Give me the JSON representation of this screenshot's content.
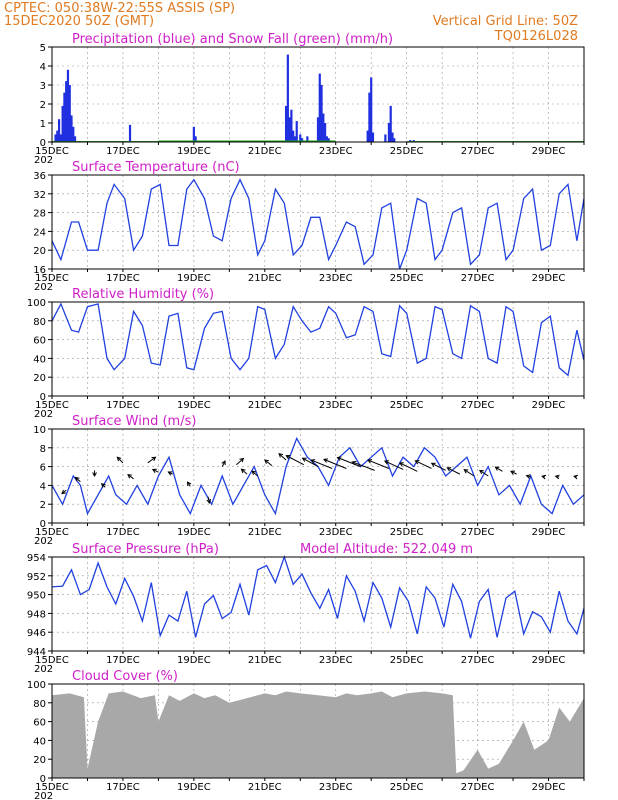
{
  "header": {
    "station": "CPTEC:   050:38W-22:55S   ASSIS (SP)",
    "date": "15DEC2020 50Z (GMT)",
    "grid_note": "Vertical Grid Line: 50Z",
    "code": "TQ0126L028"
  },
  "x_ticks": [
    "15DEC",
    "17DEC",
    "19DEC",
    "21DEC",
    "23DEC",
    "25DEC",
    "27DEC",
    "29DEC"
  ],
  "year_label": "202",
  "colors": {
    "header": "#e07b22",
    "title": "#d020c8",
    "precip": "#2030e0",
    "snow": "#20a020",
    "line": "#2040e0",
    "cloud": "#a8a8a8",
    "wind_arrow": "#000000",
    "grid": "#999999"
  },
  "chart_data": [
    {
      "id": "precip",
      "type": "bar",
      "title": "Precipitation (blue) and Snow Fall (green) (mm/h)",
      "ylim": [
        0,
        5
      ],
      "yticks": [
        "0",
        "1",
        "2",
        "3",
        "4",
        "5"
      ],
      "x_days": [
        0.1,
        0.15,
        0.2,
        0.25,
        0.3,
        0.35,
        0.4,
        0.45,
        0.5,
        0.55,
        0.6,
        0.65,
        2.2,
        4.0,
        4.05,
        6.6,
        6.65,
        6.7,
        6.75,
        6.8,
        6.85,
        6.9,
        7.0,
        7.05,
        7.2,
        7.5,
        7.55,
        7.6,
        7.65,
        7.7,
        7.75,
        7.8,
        8.9,
        8.95,
        9.0,
        9.05,
        9.4,
        9.5,
        9.55,
        9.6,
        9.65,
        10.1,
        10.2
      ],
      "values": [
        0.4,
        0.6,
        1.2,
        0.4,
        1.9,
        2.6,
        3.2,
        3.8,
        3.0,
        1.4,
        0.8,
        0.3,
        0.9,
        0.8,
        0.3,
        1.9,
        4.6,
        1.3,
        1.7,
        0.6,
        0.3,
        1.1,
        0.4,
        0.2,
        0.3,
        1.3,
        3.6,
        3.0,
        1.5,
        1.0,
        0.3,
        0.2,
        0.6,
        2.6,
        3.4,
        0.5,
        0.4,
        1.0,
        1.9,
        0.5,
        0.2,
        0.1,
        0.1
      ],
      "snow": [
        [
          0.0,
          3.0,
          0.05
        ],
        [
          3.0,
          8.0,
          0.08
        ],
        [
          10.0,
          15.0,
          0.05
        ]
      ]
    },
    {
      "id": "temperature",
      "type": "line",
      "title": "Surface Temperature (nC)",
      "ylim": [
        16,
        36
      ],
      "yticks": [
        "16",
        "20",
        "24",
        "28",
        "32",
        "36"
      ],
      "x_days": [
        0,
        0.25,
        0.55,
        0.75,
        1.0,
        1.3,
        1.55,
        1.75,
        2.05,
        2.3,
        2.55,
        2.8,
        3.05,
        3.3,
        3.55,
        3.8,
        4.0,
        4.3,
        4.55,
        4.8,
        5.05,
        5.3,
        5.55,
        5.8,
        6.0,
        6.3,
        6.55,
        6.8,
        7.05,
        7.3,
        7.55,
        7.8,
        8.0,
        8.3,
        8.55,
        8.8,
        9.05,
        9.3,
        9.55,
        9.8,
        10.0,
        10.3,
        10.55,
        10.8,
        11.0,
        11.3,
        11.55,
        11.8,
        12.05,
        12.3,
        12.55,
        12.8,
        13.0,
        13.3,
        13.55,
        13.8,
        14.05,
        14.3,
        14.55,
        14.8,
        15.0
      ],
      "values": [
        22,
        18,
        26,
        26,
        20,
        20,
        30,
        34,
        31,
        20,
        23,
        33,
        34,
        21,
        21,
        33,
        35,
        31,
        23,
        22,
        31,
        35,
        31,
        19,
        22,
        33,
        30,
        19,
        21,
        27,
        27,
        18,
        21,
        26,
        25,
        17,
        19,
        29,
        30,
        16,
        20,
        31,
        30,
        18,
        20,
        28,
        29,
        17,
        19,
        29,
        30,
        18,
        20,
        31,
        33,
        20,
        21,
        32,
        34,
        22,
        31
      ]
    },
    {
      "id": "humidity",
      "type": "line",
      "title": "Relative Humidity (%)",
      "ylim": [
        0,
        100
      ],
      "yticks": [
        "0",
        "20",
        "40",
        "60",
        "80",
        "100"
      ],
      "x_days": [
        0,
        0.25,
        0.55,
        0.75,
        1.0,
        1.3,
        1.55,
        1.75,
        2.05,
        2.3,
        2.55,
        2.8,
        3.05,
        3.3,
        3.55,
        3.8,
        4.0,
        4.3,
        4.55,
        4.8,
        5.05,
        5.3,
        5.55,
        5.8,
        6.0,
        6.3,
        6.55,
        6.8,
        7.05,
        7.3,
        7.55,
        7.8,
        8.0,
        8.3,
        8.55,
        8.8,
        9.05,
        9.3,
        9.55,
        9.8,
        10.0,
        10.3,
        10.55,
        10.8,
        11.0,
        11.3,
        11.55,
        11.8,
        12.05,
        12.3,
        12.55,
        12.8,
        13.0,
        13.3,
        13.55,
        13.8,
        14.05,
        14.3,
        14.55,
        14.8,
        15.0
      ],
      "values": [
        80,
        98,
        70,
        68,
        95,
        98,
        40,
        28,
        40,
        90,
        75,
        35,
        33,
        85,
        88,
        30,
        28,
        72,
        88,
        90,
        40,
        28,
        40,
        95,
        92,
        40,
        55,
        95,
        80,
        68,
        72,
        95,
        88,
        62,
        65,
        95,
        90,
        45,
        42,
        96,
        88,
        35,
        40,
        95,
        92,
        45,
        40,
        96,
        90,
        40,
        35,
        95,
        90,
        32,
        25,
        78,
        85,
        30,
        22,
        70,
        38
      ]
    },
    {
      "id": "wind",
      "type": "line",
      "title": "Surface Wind (m/s)",
      "ylim": [
        0,
        10
      ],
      "yticks": [
        "0",
        "2",
        "4",
        "6",
        "8",
        "10"
      ],
      "x_days": [
        0,
        0.3,
        0.6,
        0.8,
        1.0,
        1.3,
        1.6,
        1.8,
        2.1,
        2.4,
        2.7,
        3.0,
        3.3,
        3.6,
        3.9,
        4.2,
        4.5,
        4.8,
        5.1,
        5.4,
        5.7,
        6.0,
        6.3,
        6.6,
        6.9,
        7.2,
        7.5,
        7.8,
        8.1,
        8.4,
        8.7,
        9.0,
        9.3,
        9.6,
        9.9,
        10.2,
        10.5,
        10.8,
        11.1,
        11.4,
        11.7,
        12.0,
        12.3,
        12.6,
        12.9,
        13.2,
        13.5,
        13.8,
        14.1,
        14.4,
        14.7,
        15.0
      ],
      "values": [
        4,
        2,
        5,
        4,
        1,
        3,
        5,
        3,
        2,
        4,
        2,
        5,
        7,
        3,
        1,
        4,
        2,
        5,
        2,
        4,
        6,
        3,
        1,
        6,
        9,
        7,
        6,
        4,
        7,
        8,
        6,
        7,
        8,
        5,
        7,
        6,
        8,
        7,
        5,
        6,
        7,
        4,
        6,
        3,
        4,
        2,
        5,
        2,
        1,
        4,
        2,
        3
      ]
    },
    {
      "id": "pressure",
      "type": "line",
      "title": "Surface Pressure (hPa)",
      "subtitle": "Model Altitude: 522.049 m",
      "ylim": [
        944,
        955
      ],
      "yticks": [
        "944",
        "946",
        "948",
        "950",
        "952",
        "954"
      ],
      "x_days": [
        0,
        0.3,
        0.55,
        0.8,
        1.05,
        1.3,
        1.55,
        1.8,
        2.05,
        2.3,
        2.55,
        2.8,
        3.05,
        3.3,
        3.55,
        3.8,
        4.05,
        4.3,
        4.55,
        4.8,
        5.05,
        5.3,
        5.55,
        5.8,
        6.05,
        6.3,
        6.55,
        6.8,
        7.05,
        7.3,
        7.55,
        7.8,
        8.05,
        8.3,
        8.55,
        8.8,
        9.05,
        9.3,
        9.55,
        9.8,
        10.05,
        10.3,
        10.55,
        10.8,
        11.05,
        11.3,
        11.55,
        11.8,
        12.05,
        12.3,
        12.55,
        12.8,
        13.05,
        13.3,
        13.55,
        13.8,
        14.05,
        14.3,
        14.55,
        14.8,
        15.0
      ],
      "values": [
        951.5,
        951.6,
        953.5,
        950.6,
        951.2,
        954.3,
        951.5,
        949.5,
        952.5,
        950.4,
        947.5,
        952.0,
        945.8,
        948.2,
        947.5,
        951.0,
        945.6,
        949.5,
        950.5,
        947.8,
        948.5,
        951.8,
        948.2,
        953.5,
        954.0,
        952.0,
        955.0,
        951.8,
        953.0,
        950.8,
        949.0,
        951.2,
        947.8,
        952.8,
        951.0,
        947.5,
        952.0,
        950.2,
        946.8,
        951.4,
        949.8,
        946.0,
        951.5,
        950.2,
        946.8,
        951.8,
        949.8,
        945.5,
        949.8,
        951.2,
        945.6,
        950.2,
        951.0,
        946.0,
        948.6,
        948.0,
        946.2,
        951.0,
        947.5,
        946.0,
        949.0
      ]
    },
    {
      "id": "cloud",
      "type": "area",
      "title": "Cloud Cover (%)",
      "ylim": [
        0,
        100
      ],
      "yticks": [
        "0",
        "20",
        "40",
        "60",
        "80",
        "100"
      ],
      "x_days": [
        0,
        0.5,
        0.9,
        1.0,
        1.3,
        1.6,
        2.0,
        2.5,
        2.9,
        3.0,
        3.3,
        3.6,
        4.0,
        4.3,
        4.6,
        5.0,
        5.5,
        6.0,
        6.3,
        6.6,
        7.0,
        7.5,
        8.0,
        8.3,
        8.6,
        9.0,
        9.3,
        9.6,
        10.0,
        10.5,
        11.0,
        11.3,
        11.4,
        11.6,
        12.0,
        12.3,
        12.6,
        13.0,
        13.3,
        13.6,
        14.0,
        14.3,
        14.6,
        15.0
      ],
      "values": [
        88,
        90,
        86,
        10,
        60,
        90,
        92,
        85,
        88,
        60,
        88,
        82,
        90,
        85,
        88,
        80,
        85,
        90,
        88,
        92,
        90,
        88,
        86,
        90,
        88,
        90,
        92,
        86,
        90,
        92,
        90,
        88,
        5,
        8,
        30,
        10,
        15,
        40,
        60,
        30,
        40,
        75,
        60,
        85
      ]
    }
  ],
  "wind_vectors": {
    "x_days": [
      0.4,
      0.8,
      1.2,
      1.5,
      2.0,
      2.3,
      2.7,
      3.0,
      3.4,
      3.9,
      4.4,
      4.8,
      5.2,
      5.5,
      5.8,
      6.2,
      6.6,
      7.1,
      7.5,
      7.9,
      8.3,
      8.7,
      9.1,
      9.5,
      9.9,
      10.3,
      10.7,
      11.1,
      11.5,
      11.9,
      12.3,
      12.7,
      13.1,
      13.5,
      13.9,
      14.3,
      14.8
    ],
    "y": [
      3.5,
      4.4,
      5.6,
      3.8,
      6.4,
      4.7,
      6.4,
      5.4,
      5.2,
      3.9,
      2.8,
      6.0,
      6.2,
      5.2,
      5.0,
      6.1,
      6.7,
      6.2,
      6.0,
      5.8,
      5.8,
      6.0,
      5.6,
      5.8,
      5.7,
      5.5,
      5.8,
      5.6,
      5.2,
      5.0,
      5.0,
      5.5,
      5.2,
      4.9,
      4.9,
      4.9,
      4.9
    ],
    "u": [
      -0.6,
      -0.7,
      0.0,
      -0.5,
      -0.8,
      -0.8,
      1.1,
      -0.8,
      -0.6,
      -0.4,
      0.2,
      0.4,
      1.0,
      -0.8,
      -0.8,
      -1.0,
      -1.0,
      -2.5,
      -2.2,
      -3.0,
      -3.2,
      -3.3,
      -3.2,
      -3.0,
      -2.6,
      -2.5,
      -2.3,
      -2.0,
      -1.8,
      -1.4,
      -1.2,
      -1.0,
      -0.8,
      -0.6,
      -0.4,
      -0.5,
      -0.4
    ],
    "v": [
      -0.5,
      0.6,
      -0.8,
      0.5,
      0.8,
      0.6,
      0.8,
      0.4,
      0.3,
      0.6,
      -0.9,
      0.8,
      0.9,
      0.7,
      0.7,
      0.8,
      0.9,
      1.3,
      1.2,
      1.2,
      1.3,
      1.3,
      1.2,
      1.2,
      1.2,
      1.2,
      1.1,
      1.0,
      0.9,
      0.9,
      0.8,
      0.6,
      0.4,
      0.2,
      0.1,
      0.1,
      0.1
    ]
  }
}
